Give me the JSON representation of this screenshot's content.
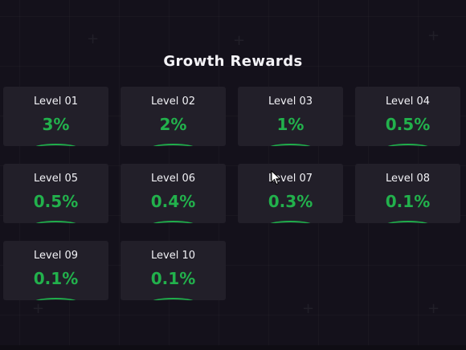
{
  "page": {
    "title": "Growth Rewards"
  },
  "colors": {
    "background": "#14111b",
    "card": "#221f29",
    "accent_green": "#22b14c"
  },
  "rewards": [
    {
      "level": "Level 01",
      "percent": "3%"
    },
    {
      "level": "Level 02",
      "percent": "2%"
    },
    {
      "level": "Level 03",
      "percent": "1%"
    },
    {
      "level": "Level 04",
      "percent": "0.5%"
    },
    {
      "level": "Level 05",
      "percent": "0.5%"
    },
    {
      "level": "Level 06",
      "percent": "0.4%"
    },
    {
      "level": "Level 07",
      "percent": "0.3%"
    },
    {
      "level": "Level 08",
      "percent": "0.1%"
    },
    {
      "level": "Level 09",
      "percent": "0.1%"
    },
    {
      "level": "Level 10",
      "percent": "0.1%"
    }
  ],
  "icons": {
    "cursor": "mouse-pointer-icon",
    "card_arc": "arc-decoration-icon"
  }
}
